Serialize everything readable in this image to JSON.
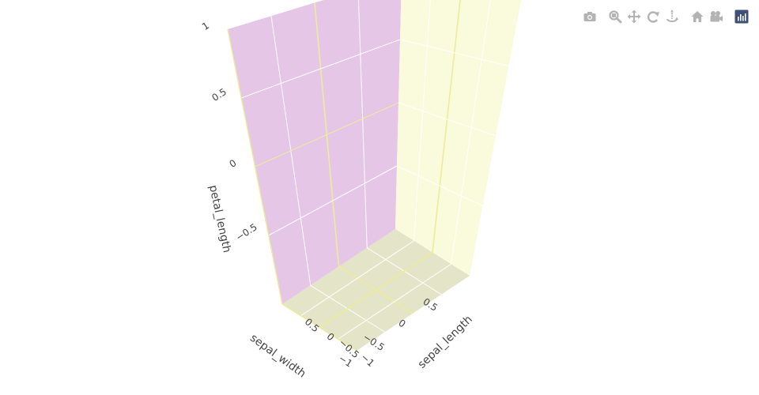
{
  "chart_data": {
    "type": "scatter3d",
    "x": [],
    "y": [],
    "z": [],
    "axes": {
      "x": {
        "title": "sepal_width",
        "range": [
          -1,
          1
        ],
        "tickvals": [
          -1,
          -0.5,
          0,
          0.5
        ],
        "ticktext": [
          "−1",
          "−0.5",
          "0",
          "0.5"
        ]
      },
      "y": {
        "title": "sepal_length",
        "range": [
          -1,
          1
        ],
        "tickvals": [
          -1,
          -0.5,
          0,
          0.5
        ],
        "ticktext": [
          "−1",
          "−0.5",
          "0",
          "0.5"
        ]
      },
      "z": {
        "title": "petal_length",
        "range": [
          -1,
          1
        ],
        "tickvals": [
          -0.5,
          0,
          0.5,
          1
        ],
        "ticktext": [
          "−0.5",
          "0",
          "0.5",
          "1"
        ]
      }
    },
    "grid": true,
    "colors": {
      "left_wall": "#e6c6e6",
      "right_wall": "#fafadc",
      "floor": "#e4e4c8",
      "gridline": "#ffffff",
      "zeroline": "#ecec9a"
    }
  },
  "axis_labels": {
    "x_title": "sepal_width",
    "y_title": "sepal_length",
    "z_title": "petal_length"
  },
  "modebar": {
    "buttons": [
      {
        "name": "download-plot-button",
        "icon": "camera-icon"
      },
      {
        "name": "zoom-button",
        "icon": "zoom-icon"
      },
      {
        "name": "pan-button",
        "icon": "pan-icon"
      },
      {
        "name": "orbit-rotation-button",
        "icon": "orbit-icon"
      },
      {
        "name": "turntable-rotation-button",
        "icon": "turntable-icon"
      },
      {
        "name": "reset-camera-button",
        "icon": "home-icon"
      },
      {
        "name": "last-saved-view-button",
        "icon": "camera-view-icon"
      },
      {
        "name": "plotly-logo-link",
        "icon": "plotly-logo-icon"
      }
    ]
  }
}
